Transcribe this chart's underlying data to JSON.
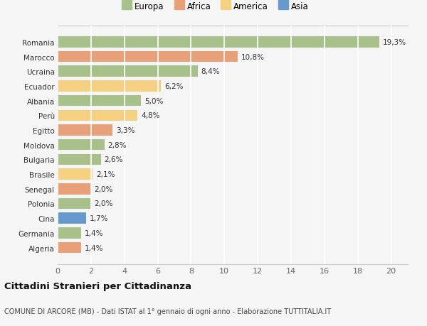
{
  "countries": [
    "Romania",
    "Marocco",
    "Ucraina",
    "Ecuador",
    "Albania",
    "Perù",
    "Egitto",
    "Moldova",
    "Bulgaria",
    "Brasile",
    "Senegal",
    "Polonia",
    "Cina",
    "Germania",
    "Algeria"
  ],
  "values": [
    19.3,
    10.8,
    8.4,
    6.2,
    5.0,
    4.8,
    3.3,
    2.8,
    2.6,
    2.1,
    2.0,
    2.0,
    1.7,
    1.4,
    1.4
  ],
  "labels": [
    "19,3%",
    "10,8%",
    "8,4%",
    "6,2%",
    "5,0%",
    "4,8%",
    "3,3%",
    "2,8%",
    "2,6%",
    "2,1%",
    "2,0%",
    "2,0%",
    "1,7%",
    "1,4%",
    "1,4%"
  ],
  "continents": [
    "Europa",
    "Africa",
    "Europa",
    "America",
    "Europa",
    "America",
    "Africa",
    "Europa",
    "Europa",
    "America",
    "Africa",
    "Europa",
    "Asia",
    "Europa",
    "Africa"
  ],
  "colors": {
    "Europa": "#a8c08a",
    "Africa": "#e8a078",
    "America": "#f5d080",
    "Asia": "#6699cc"
  },
  "legend_labels": [
    "Europa",
    "Africa",
    "America",
    "Asia"
  ],
  "legend_colors": [
    "#a8c08a",
    "#e8a078",
    "#f5d080",
    "#6699cc"
  ],
  "title": "Cittadini Stranieri per Cittadinanza",
  "subtitle": "COMUNE DI ARCORE (MB) - Dati ISTAT al 1° gennaio di ogni anno - Elaborazione TUTTITALIA.IT",
  "xlim": [
    0,
    21
  ],
  "xticks": [
    0,
    2,
    4,
    6,
    8,
    10,
    12,
    14,
    16,
    18,
    20
  ],
  "bg_color": "#f5f5f5",
  "grid_color": "#ffffff",
  "bar_height": 0.75,
  "label_fontsize": 7.5,
  "ytick_fontsize": 7.5,
  "xtick_fontsize": 8.0,
  "title_fontsize": 9.5,
  "subtitle_fontsize": 7.0
}
